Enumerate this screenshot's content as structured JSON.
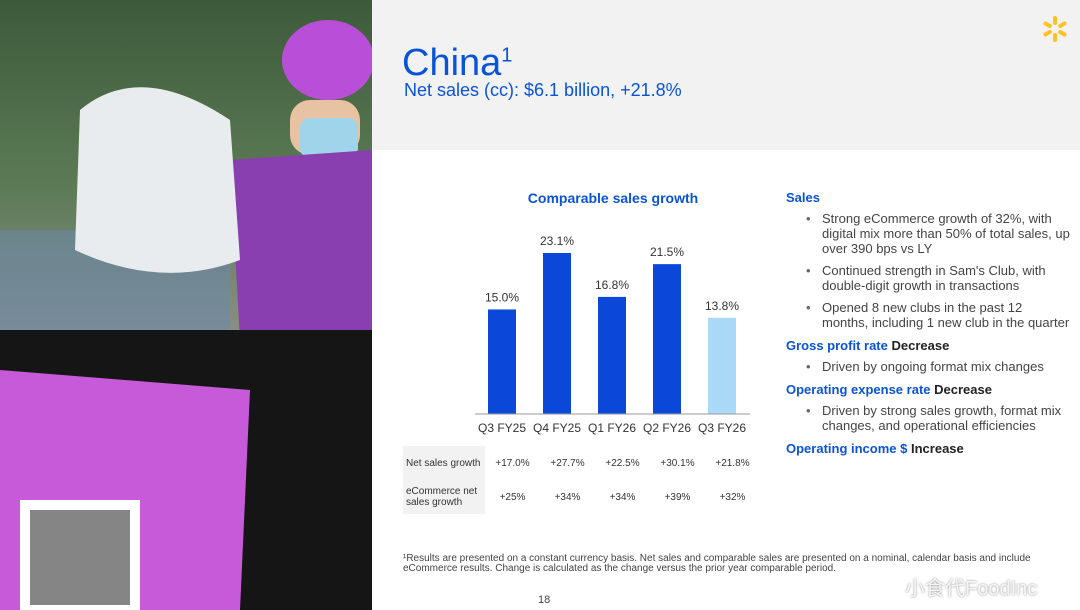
{
  "header": {
    "title": "China",
    "title_sup": "1",
    "subtitle": "Net sales (cc): $6.1 billion, +21.8%"
  },
  "colors": {
    "brand": "#0a53d6",
    "bar": "#0b47d8",
    "bar_highlight": "#a9d9f7",
    "spark": "#ffc220"
  },
  "chart_data": {
    "type": "bar",
    "title": "Comparable sales growth",
    "categories": [
      "Q3 FY25",
      "Q4 FY25",
      "Q1 FY26",
      "Q2 FY26",
      "Q3 FY26"
    ],
    "values": [
      15.0,
      23.1,
      16.8,
      21.5,
      13.8
    ],
    "labels": [
      "15.0%",
      "23.1%",
      "16.8%",
      "21.5%",
      "13.8%"
    ],
    "ylim": [
      0,
      25
    ],
    "grid": false
  },
  "table": {
    "rows": [
      {
        "label": "Net sales growth",
        "values": [
          "+17.0%",
          "+27.7%",
          "+22.5%",
          "+30.1%",
          "+21.8%"
        ]
      },
      {
        "label": "eCommerce net sales growth",
        "values": [
          "+25%",
          "+34%",
          "+34%",
          "+39%",
          "+32%"
        ]
      }
    ]
  },
  "right": {
    "sales": {
      "heading": "Sales",
      "bullets": [
        "Strong eCommerce growth of 32%, with digital mix more than 50% of total sales, up over 390 bps vs LY",
        "Continued strength in Sam's Club, with double-digit growth in transactions",
        "Opened 8 new clubs in the past 12 months, including 1 new club in the quarter"
      ]
    },
    "gross": {
      "heading": "Gross profit rate",
      "status": "Decrease",
      "bullets": [
        "Driven by ongoing format mix changes"
      ]
    },
    "opex": {
      "heading": "Operating expense rate",
      "status": "Decrease",
      "bullets": [
        "Driven by strong sales growth, format mix changes, and operational efficiencies"
      ]
    },
    "opinc": {
      "heading": "Operating income $",
      "status": "Increase"
    }
  },
  "footnote": "¹Results are presented on a constant currency basis. Net sales and comparable sales are presented on a nominal, calendar basis and include eCommerce results. Change is calculated as the change versus the prior year comparable period.",
  "page_number": "18",
  "watermark": "小食代FoodInc"
}
